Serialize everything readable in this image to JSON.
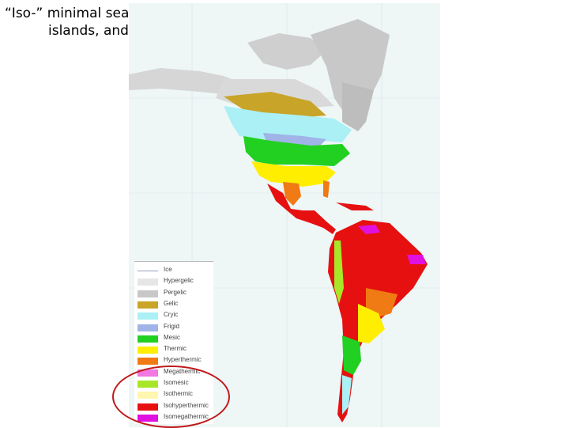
{
  "title": {
    "line1": "“Iso-” minimal seasonal variation in soil temperature",
    "line2": "islands, and the tropics"
  },
  "legend": {
    "items": [
      {
        "label": "Ice",
        "color": "#ffffff"
      },
      {
        "label": "Hypergelic",
        "color": "#e6e6e6"
      },
      {
        "label": "Pergelic",
        "color": "#c8c8c8"
      },
      {
        "label": "Gelic",
        "color": "#c8a428"
      },
      {
        "label": "Cryic",
        "color": "#aaf0f5"
      },
      {
        "label": "Frigid",
        "color": "#a0b4e8"
      },
      {
        "label": "Mesic",
        "color": "#22d022"
      },
      {
        "label": "Thermic",
        "color": "#ffee00"
      },
      {
        "label": "Hyperthermic",
        "color": "#f07a14"
      },
      {
        "label": "Megathermic",
        "color": "#f078e0"
      },
      {
        "label": "Isomesic",
        "color": "#a8e628"
      },
      {
        "label": "Isothermic",
        "color": "#fff6b0"
      },
      {
        "label": "Isohyperthermic",
        "color": "#e61010"
      },
      {
        "label": "Isomegathermic",
        "color": "#e010e0"
      }
    ]
  }
}
